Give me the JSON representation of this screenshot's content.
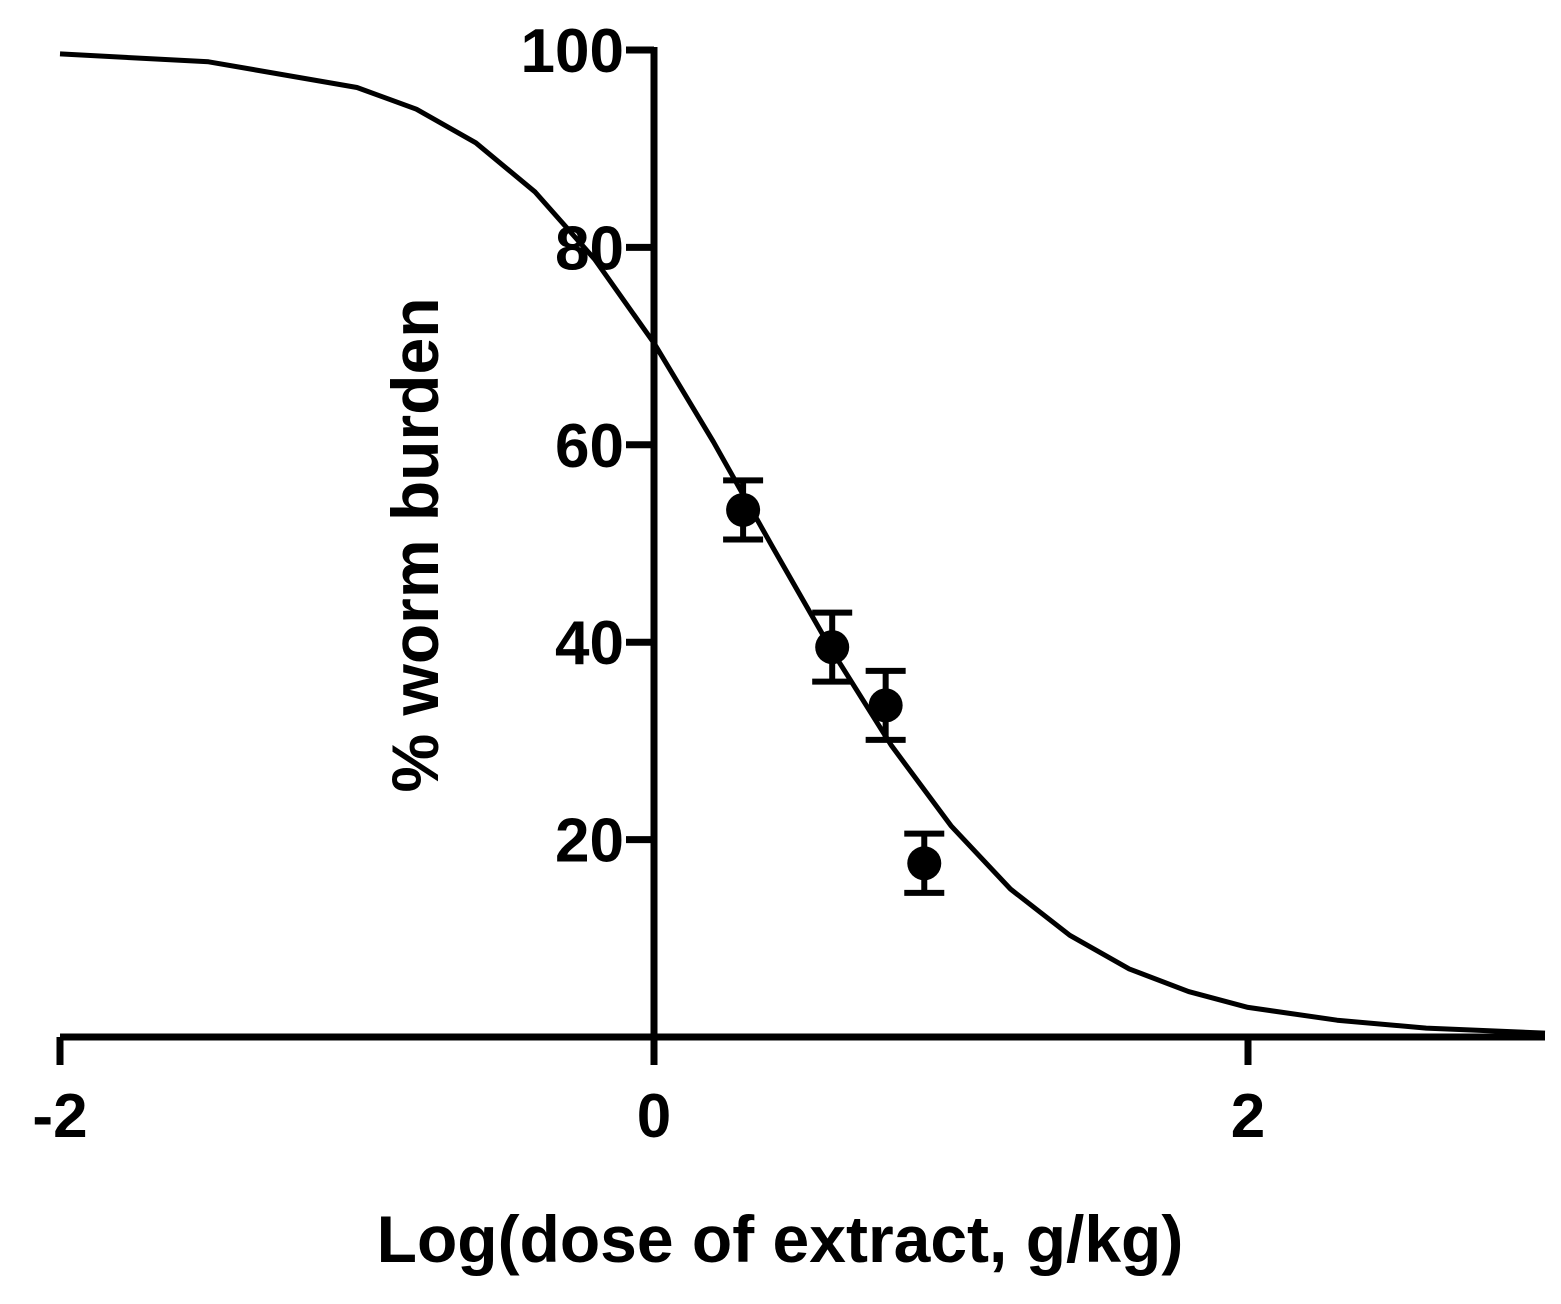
{
  "chart_data": {
    "type": "scatter",
    "title": "",
    "xlabel": "Log(dose of extract, g/kg)",
    "ylabel": "% worm burden",
    "xlim": [
      -2,
      3.0
    ],
    "ylim": [
      0,
      100
    ],
    "xticks": [
      -2,
      0,
      2
    ],
    "xtick_labels": [
      "-2",
      "0",
      "2"
    ],
    "yticks": [
      20,
      40,
      60,
      80,
      100
    ],
    "ytick_labels": [
      "20",
      "40",
      "60",
      "80",
      "100"
    ],
    "grid": false,
    "legend": "none",
    "series": [
      {
        "type": "scatter",
        "marker": "circle",
        "x": [
          0.3,
          0.6,
          0.78,
          0.91
        ],
        "y": [
          53.4,
          39.5,
          33.6,
          17.6
        ],
        "error": [
          3.0,
          3.5,
          3.5,
          3.0
        ]
      },
      {
        "type": "fit-curve",
        "model": "sigmoidal dose-response",
        "x": [
          -2.0,
          -1.5,
          -1.0,
          -0.8,
          -0.6,
          -0.4,
          -0.2,
          0.0,
          0.2,
          0.4,
          0.6,
          0.8,
          1.0,
          1.2,
          1.4,
          1.6,
          1.8,
          2.0,
          2.3,
          2.6,
          3.0
        ],
        "y": [
          99.6,
          98.8,
          96.2,
          94.0,
          90.6,
          85.6,
          78.8,
          70.3,
          60.3,
          49.6,
          39.1,
          29.5,
          21.4,
          15.0,
          10.3,
          6.9,
          4.6,
          3.0,
          1.7,
          0.9,
          0.4
        ]
      }
    ],
    "color": "#000000"
  }
}
